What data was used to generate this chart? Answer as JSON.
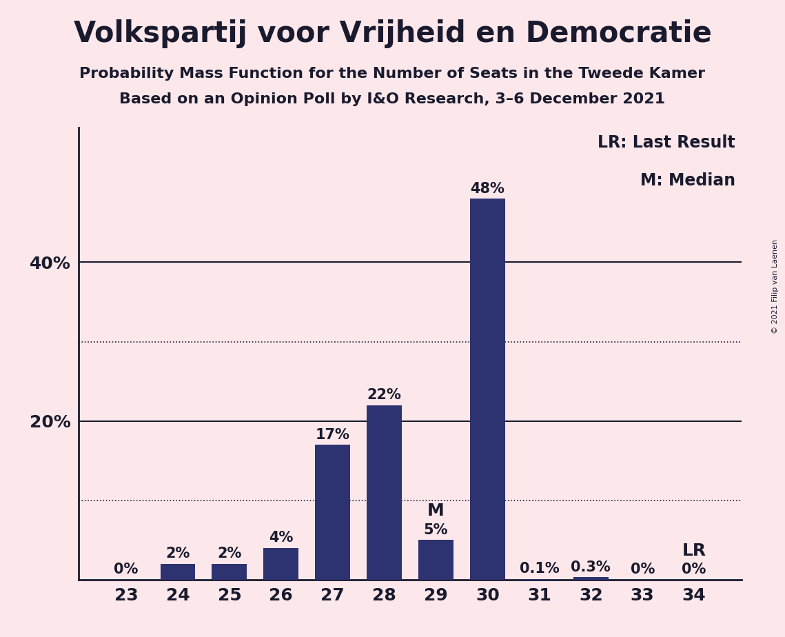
{
  "title": "Volkspartij voor Vrijheid en Democratie",
  "subtitle1": "Probability Mass Function for the Number of Seats in the Tweede Kamer",
  "subtitle2": "Based on an Opinion Poll by I&O Research, 3–6 December 2021",
  "copyright": "© 2021 Filip van Laenen",
  "categories": [
    23,
    24,
    25,
    26,
    27,
    28,
    29,
    30,
    31,
    32,
    33,
    34
  ],
  "values": [
    0.0,
    2.0,
    2.0,
    4.0,
    17.0,
    22.0,
    5.0,
    48.0,
    0.1,
    0.3,
    0.0,
    0.0
  ],
  "labels": [
    "0%",
    "2%",
    "2%",
    "4%",
    "17%",
    "22%",
    "5%",
    "48%",
    "0.1%",
    "0.3%",
    "0%",
    "0%"
  ],
  "bar_color": "#2d3270",
  "background_color": "#fce8ea",
  "text_color": "#1a1a2e",
  "median_seat": 29,
  "lr_seat": 34,
  "ylim": [
    0,
    57
  ],
  "solid_gridlines": [
    20,
    40
  ],
  "dotted_gridlines": [
    10,
    30
  ],
  "legend_lr": "LR: Last Result",
  "legend_m": "M: Median",
  "title_fontsize": 30,
  "subtitle_fontsize": 16,
  "label_fontsize": 15,
  "tick_fontsize": 18,
  "legend_fontsize": 17,
  "copyright_fontsize": 8
}
